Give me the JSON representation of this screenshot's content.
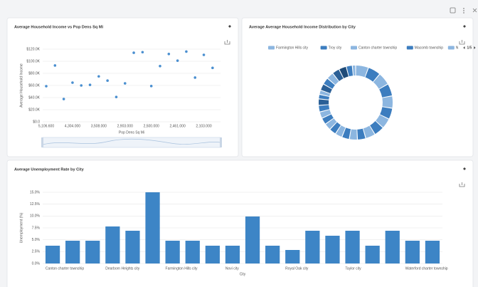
{
  "chart_data": [
    {
      "type": "scatter",
      "title": "Average Household Income vs Pop Dens Sq Mi",
      "x_label": "Pop Dens Sq Mi",
      "y_label": "Average Household Income",
      "categories": [
        "5,106.600",
        null,
        null,
        "4,304.000",
        null,
        null,
        "3,508.000",
        null,
        null,
        "2,903.000",
        null,
        null,
        "2,500.000",
        null,
        null,
        "2,461.000",
        null,
        null,
        "2,103.000",
        null
      ],
      "values": [
        58800,
        93000,
        37600,
        64700,
        60000,
        61000,
        75000,
        68000,
        41000,
        63500,
        114000,
        115000,
        59000,
        92000,
        112000,
        101000,
        116000,
        73000,
        110600,
        89000
      ],
      "color": "#4a8fd0",
      "ylim": [
        0,
        120000
      ],
      "yticks": [
        {
          "value": 0,
          "label": "$0.0"
        },
        {
          "value": 20000,
          "label": "$20.0K"
        },
        {
          "value": 40000,
          "label": "$40.0K"
        },
        {
          "value": 60000,
          "label": "$60.0K"
        },
        {
          "value": 80000,
          "label": "$80.0K"
        },
        {
          "value": 100000,
          "label": "$100.0K"
        },
        {
          "value": 120000,
          "label": "$120.0K"
        }
      ],
      "grid": true
    },
    {
      "type": "pie",
      "title": "Average Average Household Income Distribution by City",
      "categories": [
        "Farmington Hills city",
        "Troy city",
        "Canton charter township",
        "Macomb township",
        "N",
        null,
        null,
        null,
        null,
        null,
        null,
        null,
        null,
        null,
        null,
        null,
        null,
        null,
        null,
        null,
        null,
        null,
        null,
        null,
        null,
        null,
        null,
        null
      ],
      "values": [
        116,
        115,
        114,
        112,
        110,
        101,
        93,
        92,
        89,
        75,
        73,
        68,
        64,
        63,
        61,
        60,
        59,
        59,
        58,
        41,
        38,
        60,
        62,
        64,
        66,
        68,
        55,
        30
      ],
      "colors": [
        "#8cb6e0",
        "#3c7dbf",
        "#8cb6e0",
        "#3c7dbf",
        "#8cb6e0",
        "#3c7dbf",
        "#8cb6e0",
        "#3c7dbf",
        "#8cb6e0",
        "#3c7dbf",
        "#8cb6e0",
        "#3c7dbf",
        "#8cb6e0",
        "#3c7dbf",
        "#8cb6e0",
        "#3c7dbf",
        "#8cb6e0",
        "#3c7dbf",
        "#2a5f96",
        "#3c7dbf",
        "#8cb6e0",
        "#2a5f96",
        "#3c7dbf",
        "#8cb6e0",
        "#2a5f96",
        "#1f4b78",
        "#3c7dbf",
        "#8cb6e0"
      ],
      "legend_page": "1/5",
      "inner_radius_ratio": 0.73
    },
    {
      "type": "bar",
      "title": "Average Unemployment Rate by City",
      "x_label": "City",
      "y_label": "Unemployment (%)",
      "categories": [
        "Canton charter township",
        null,
        null,
        "Dearborn Heights city",
        null,
        null,
        "Farmington Hills city",
        null,
        null,
        "Novi city",
        null,
        null,
        "Royal Oak city",
        null,
        null,
        "Taylor city",
        null,
        null,
        "Waterford charter township",
        null
      ],
      "values": [
        3.75,
        4.8,
        4.8,
        7.8,
        6.9,
        15.0,
        4.8,
        4.8,
        3.75,
        3.75,
        9.9,
        3.75,
        2.85,
        6.9,
        5.85,
        6.9,
        3.75,
        6.9,
        4.8,
        4.8
      ],
      "color": "#3d85c6",
      "ylim": [
        0,
        15
      ],
      "yticks": [
        {
          "value": 0,
          "label": "0.0%"
        },
        {
          "value": 2.5,
          "label": "2.5%"
        },
        {
          "value": 5,
          "label": "5.0%"
        },
        {
          "value": 7.5,
          "label": "7.5%"
        },
        {
          "value": 10,
          "label": "10.0%"
        },
        {
          "value": 12.5,
          "label": "12.5%"
        },
        {
          "value": 15,
          "label": "15.0%"
        }
      ],
      "grid": true
    }
  ]
}
